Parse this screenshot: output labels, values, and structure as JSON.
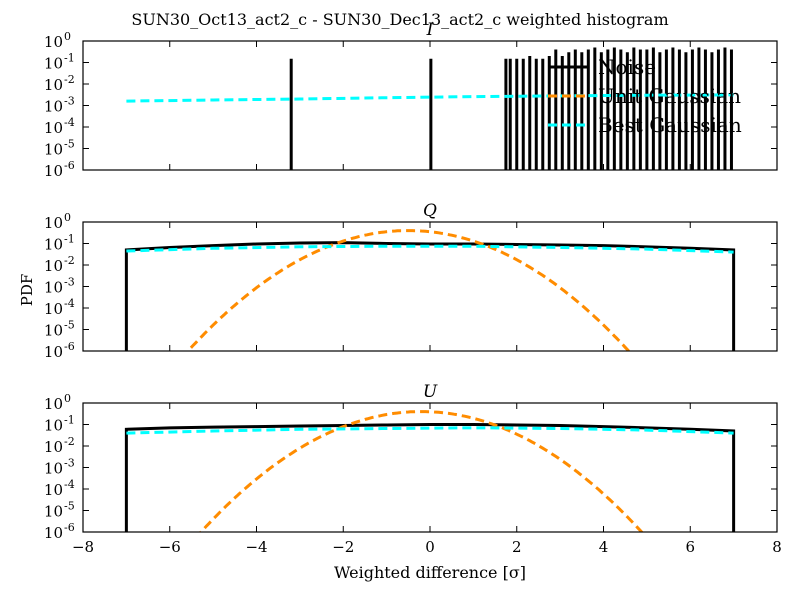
{
  "figure": {
    "title": "SUN30_Oct13_act2_c - SUN30_Dec13_act2_c weighted histogram",
    "ylabel": "PDF",
    "xlabel": "Weighted difference [σ]"
  },
  "chart_data": [
    {
      "type": "line",
      "title": "I",
      "xlim": [
        -8,
        8
      ],
      "ylim_log10": [
        -6,
        0
      ],
      "yscale": "log",
      "xticks": [
        "−8",
        "−6",
        "−4",
        "−2",
        "0",
        "2",
        "4",
        "6",
        "8"
      ],
      "yticks": [
        "10",
        "10",
        "10",
        "10",
        "10",
        "10",
        "10"
      ],
      "ytick_exponents": [
        "-6",
        "-5",
        "-4",
        "-3",
        "-2",
        "-1",
        "0"
      ],
      "show_xticklabels": false,
      "legend": {
        "placement": "upper-right",
        "entries": [
          {
            "label": "Noise",
            "color": "#000000",
            "style": "solid"
          },
          {
            "label": "Unit Gaussian",
            "color": "#ff8c00",
            "style": "dashed"
          },
          {
            "label": "Best Gaussian",
            "color": "#00ffff",
            "style": "dashed"
          }
        ]
      },
      "histogram_spikes": {
        "color": "#000000",
        "x": [
          -3.2,
          0.02,
          1.75,
          1.85,
          2.0,
          2.15,
          2.3,
          2.45,
          2.6,
          2.75,
          2.9,
          3.05,
          3.2,
          3.35,
          3.5,
          3.65,
          3.8,
          3.95,
          4.1,
          4.25,
          4.4,
          4.55,
          4.7,
          4.85,
          5.0,
          5.15,
          5.3,
          5.45,
          5.6,
          5.75,
          5.9,
          6.05,
          6.2,
          6.35,
          6.5,
          6.65,
          6.8,
          6.95
        ],
        "y": [
          0.15,
          0.15,
          0.15,
          0.15,
          0.15,
          0.15,
          0.2,
          0.15,
          0.15,
          0.2,
          0.4,
          0.2,
          0.3,
          0.4,
          0.3,
          0.4,
          0.5,
          0.3,
          0.4,
          0.5,
          0.4,
          0.3,
          0.5,
          0.4,
          0.4,
          0.5,
          0.3,
          0.4,
          0.5,
          0.4,
          0.3,
          0.4,
          0.5,
          0.4,
          0.3,
          0.4,
          0.5,
          0.4
        ]
      },
      "series": [
        {
          "name": "Best Gaussian",
          "color": "#00ffff",
          "style": "dashed",
          "x": [
            -7,
            -5,
            -3,
            -1,
            1,
            3,
            5,
            7
          ],
          "y": [
            0.0016,
            0.0018,
            0.002,
            0.0023,
            0.0026,
            0.0028,
            0.003,
            0.0031
          ]
        }
      ]
    },
    {
      "type": "line",
      "title": "Q",
      "xlim": [
        -8,
        8
      ],
      "ylim_log10": [
        -6,
        0
      ],
      "yscale": "log",
      "xticks": [
        "−8",
        "−6",
        "−4",
        "−2",
        "0",
        "2",
        "4",
        "6",
        "8"
      ],
      "yticks": [
        "10",
        "10",
        "10",
        "10",
        "10",
        "10",
        "10"
      ],
      "ytick_exponents": [
        "-6",
        "-5",
        "-4",
        "-3",
        "-2",
        "-1",
        "0"
      ],
      "show_xticklabels": false,
      "histogram": {
        "name": "Noise",
        "color": "#000000",
        "x": [
          -7,
          -6,
          -5,
          -4,
          -3,
          -2,
          -1,
          0,
          1,
          2,
          3,
          4,
          5,
          6,
          7
        ],
        "y": [
          0.05,
          0.065,
          0.08,
          0.095,
          0.105,
          0.11,
          0.1,
          0.095,
          0.095,
          0.09,
          0.085,
          0.08,
          0.07,
          0.06,
          0.05
        ]
      },
      "series": [
        {
          "name": "Unit Gaussian",
          "color": "#ff8c00",
          "style": "dashed",
          "mean": -0.5,
          "sigma": 1,
          "peak": 0.4
        },
        {
          "name": "Best Gaussian",
          "color": "#00ffff",
          "style": "dashed",
          "x": [
            -7,
            -5,
            -3,
            -1,
            1,
            3,
            5,
            7
          ],
          "y": [
            0.045,
            0.06,
            0.07,
            0.075,
            0.075,
            0.065,
            0.055,
            0.04
          ]
        }
      ]
    },
    {
      "type": "line",
      "title": "U",
      "xlim": [
        -8,
        8
      ],
      "ylim_log10": [
        -6,
        0
      ],
      "yscale": "log",
      "xticks": [
        "−8",
        "−6",
        "−4",
        "−2",
        "0",
        "2",
        "4",
        "6",
        "8"
      ],
      "yticks": [
        "10",
        "10",
        "10",
        "10",
        "10",
        "10",
        "10"
      ],
      "ytick_exponents": [
        "-6",
        "-5",
        "-4",
        "-3",
        "-2",
        "-1",
        "0"
      ],
      "show_xticklabels": true,
      "histogram": {
        "name": "Noise",
        "color": "#000000",
        "x": [
          -7,
          -6,
          -5,
          -4,
          -3,
          -2,
          -1,
          0,
          1,
          2,
          3,
          4,
          5,
          6,
          7
        ],
        "y": [
          0.06,
          0.07,
          0.075,
          0.08,
          0.085,
          0.09,
          0.095,
          0.1,
          0.1,
          0.095,
          0.09,
          0.08,
          0.07,
          0.06,
          0.05
        ]
      },
      "series": [
        {
          "name": "Unit Gaussian",
          "color": "#ff8c00",
          "style": "dashed",
          "mean": -0.2,
          "sigma": 1,
          "peak": 0.4
        },
        {
          "name": "Best Gaussian",
          "color": "#00ffff",
          "style": "dashed",
          "x": [
            -7,
            -5,
            -3,
            -1,
            1,
            3,
            5,
            7
          ],
          "y": [
            0.04,
            0.05,
            0.06,
            0.065,
            0.07,
            0.065,
            0.055,
            0.04
          ]
        }
      ]
    }
  ]
}
